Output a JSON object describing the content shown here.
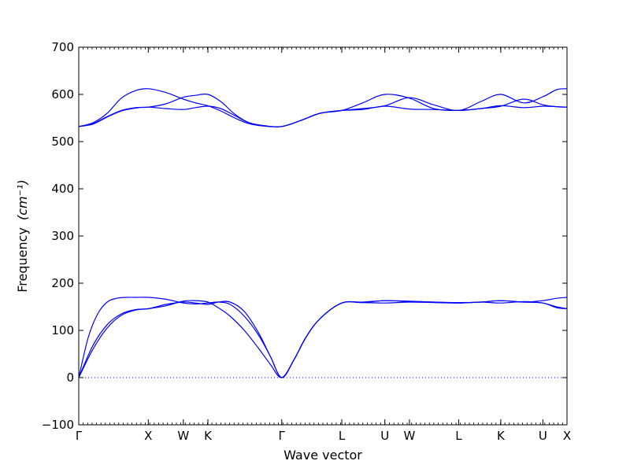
{
  "chart_data": {
    "type": "line",
    "title": "",
    "xlabel": "Wave vector",
    "ylabel": "Frequency",
    "ylabel_unit": "(cm⁻¹)",
    "ylim": [
      -100,
      700
    ],
    "yticks": [
      "700",
      "600",
      "500",
      "400",
      "300",
      "200",
      "100",
      "0",
      "−100"
    ],
    "yticks_values": [
      700,
      600,
      500,
      400,
      300,
      200,
      100,
      0,
      -100
    ],
    "xlim": [
      0,
      10.32
    ],
    "xticks": [
      {
        "label": "Γ",
        "x": 0
      },
      {
        "label": "X",
        "x": 1.47
      },
      {
        "label": "W",
        "x": 2.21
      },
      {
        "label": "K",
        "x": 2.73
      },
      {
        "label": "Γ",
        "x": 4.29
      },
      {
        "label": "L",
        "x": 5.56
      },
      {
        "label": "U",
        "x": 6.47
      },
      {
        "label": "W",
        "x": 6.99
      },
      {
        "label": "L",
        "x": 8.03
      },
      {
        "label": "K",
        "x": 8.92
      },
      {
        "label": "U",
        "x": 9.81
      },
      {
        "label": "X",
        "x": 10.32
      }
    ],
    "grid": false,
    "line_color": "#0000ff",
    "zero_line_color": "#0000ff",
    "series": [
      {
        "x": [
          0,
          0.3,
          0.6,
          0.9,
          1.2,
          1.47,
          1.84,
          2.21,
          2.47,
          2.73,
          3.0,
          3.3,
          3.6,
          3.9,
          4.29,
          4.7,
          5.1,
          5.56,
          6.0,
          6.47,
          6.99,
          7.5,
          8.03,
          8.5,
          8.92,
          9.4,
          9.81,
          10.1,
          10.32
        ],
        "y": [
          532,
          540,
          560,
          592,
          608,
          612,
          604,
          590,
          582,
          576,
          565,
          550,
          538,
          533,
          532,
          545,
          560,
          566,
          568,
          575,
          569,
          568,
          566,
          570,
          576,
          572,
          575,
          574,
          573
        ]
      },
      {
        "x": [
          0,
          0.3,
          0.6,
          0.9,
          1.2,
          1.47,
          1.84,
          2.21,
          2.47,
          2.73,
          3.0,
          3.3,
          3.6,
          3.9,
          4.29,
          4.7,
          5.1,
          5.56,
          6.0,
          6.47,
          6.99,
          7.5,
          8.03,
          8.5,
          8.92,
          9.4,
          9.81,
          10.1,
          10.32
        ],
        "y": [
          532,
          538,
          553,
          566,
          572,
          573,
          580,
          594,
          598,
          600,
          585,
          558,
          540,
          534,
          532,
          545,
          560,
          566,
          570,
          576,
          593,
          578,
          566,
          585,
          600,
          582,
          595,
          610,
          612
        ]
      },
      {
        "x": [
          0,
          0.3,
          0.6,
          0.9,
          1.2,
          1.47,
          1.84,
          2.21,
          2.47,
          2.73,
          3.0,
          3.3,
          3.6,
          3.9,
          4.29,
          4.7,
          5.1,
          5.56,
          6.0,
          6.47,
          6.99,
          7.5,
          8.03,
          8.5,
          8.92,
          9.4,
          9.81,
          10.1,
          10.32
        ],
        "y": [
          532,
          537,
          552,
          565,
          571,
          573,
          570,
          568,
          572,
          575,
          570,
          555,
          540,
          534,
          532,
          545,
          560,
          566,
          582,
          600,
          592,
          570,
          566,
          570,
          575,
          590,
          578,
          574,
          573
        ]
      },
      {
        "x": [
          0,
          0.3,
          0.6,
          0.9,
          1.2,
          1.47,
          1.84,
          2.21,
          2.47,
          2.73,
          2.95,
          3.2,
          3.5,
          3.8,
          4.05,
          4.29,
          4.55,
          4.8,
          5.1,
          5.56,
          6.0,
          6.47,
          6.99,
          7.5,
          8.03,
          8.5,
          8.92,
          9.4,
          9.81,
          10.1,
          10.32
        ],
        "y": [
          0,
          60,
          105,
          132,
          143,
          146,
          152,
          162,
          163,
          160,
          148,
          130,
          100,
          62,
          28,
          0,
          38,
          85,
          125,
          158,
          159,
          163,
          161,
          160,
          158,
          160,
          163,
          160,
          163,
          168,
          170
        ]
      },
      {
        "x": [
          0,
          0.3,
          0.6,
          0.9,
          1.2,
          1.47,
          1.84,
          2.21,
          2.47,
          2.73,
          2.95,
          3.2,
          3.5,
          3.8,
          4.05,
          4.29,
          4.55,
          4.8,
          5.1,
          5.56,
          6.0,
          6.47,
          6.99,
          7.5,
          8.03,
          8.5,
          8.92,
          9.4,
          9.81,
          10.1,
          10.32
        ],
        "y": [
          0,
          68,
          112,
          135,
          144,
          146,
          155,
          160,
          158,
          155,
          160,
          160,
          140,
          95,
          45,
          0,
          38,
          85,
          125,
          158,
          159,
          158,
          160,
          159,
          158,
          160,
          158,
          161,
          158,
          150,
          146
        ]
      },
      {
        "x": [
          0,
          0.2,
          0.4,
          0.6,
          0.8,
          1.0,
          1.2,
          1.47,
          1.84,
          2.21,
          2.47,
          2.73,
          2.95,
          3.2,
          3.5,
          3.8,
          4.05,
          4.29,
          4.55,
          4.8,
          5.1,
          5.56,
          6.0,
          6.47,
          6.99,
          7.5,
          8.03,
          8.5,
          8.92,
          9.4,
          9.81,
          10.1,
          10.32
        ],
        "y": [
          0,
          85,
          135,
          160,
          168,
          170,
          170,
          170,
          166,
          158,
          156,
          158,
          160,
          155,
          130,
          90,
          45,
          0,
          38,
          85,
          125,
          158,
          160,
          163,
          162,
          160,
          159,
          160,
          163,
          160,
          158,
          148,
          146
        ]
      }
    ]
  }
}
